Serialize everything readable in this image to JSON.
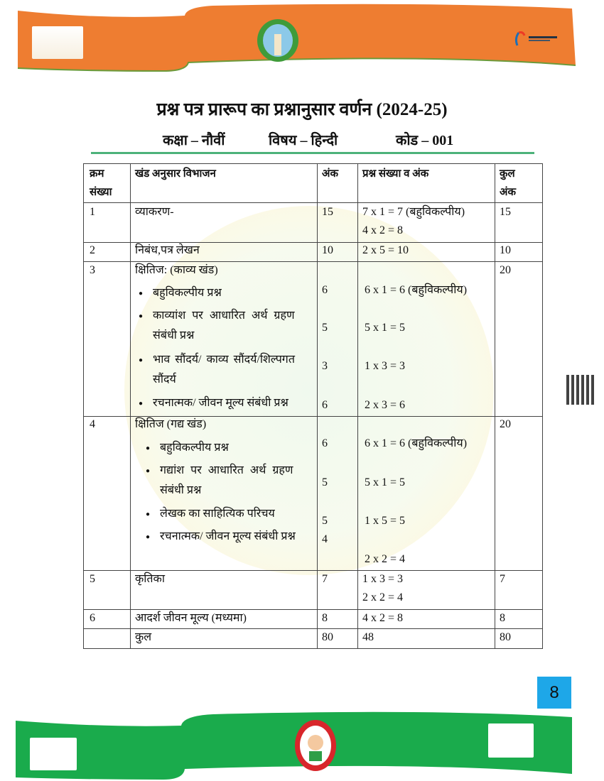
{
  "header": {
    "band_color": "#ee7d31",
    "left_logo": "azadi-ka-amrit-mahotsav-logo",
    "center_logo": "school-board-emblem",
    "right_logo": "digital-india-logo"
  },
  "footer": {
    "band_color": "#1aab4c",
    "left_logo": "swachh-bharat-logo",
    "center_logo": "beti-padhao-logo",
    "right_logo": "shiksha-ka-adhikar-logo"
  },
  "page": {
    "title": "प्रश्न पत्र प्रारूप का प्रश्नानुसार वर्णन (2024-25)",
    "class_label": "कक्षा – नौवीं",
    "subject_label": "विषय – हिन्दी",
    "code_label": "कोड – 001",
    "page_number": "8"
  },
  "table": {
    "headers": [
      "क्रम",
      "संख्या",
      "खंड अनुसार विभाजन",
      "अंक",
      "प्रश्न संख्या व अंक",
      "कुल",
      "अंक"
    ],
    "rows": [
      {
        "sn": "1",
        "section": "व्याकरण-",
        "marks": "15",
        "q": [
          "7 x 1 = 7 (बहुविकल्पीय)",
          "4 x 2 = 8"
        ],
        "total": "15"
      },
      {
        "sn": "2",
        "section": "निबंध,पत्र लेखन",
        "marks": "10",
        "q": [
          "2 x 5 = 10"
        ],
        "total": "10"
      },
      {
        "sn": "3",
        "section": "क्षितिज: (काव्य खंड)",
        "items": [
          "बहुविकल्पीय प्रश्न",
          "काव्यांश पर आधारित अर्थ ग्रहण",
          "संबंधी प्रश्न",
          "भाव सौंदर्य/ काव्य सौंदर्य/शिल्पगत",
          "सौंदर्य",
          "रचनात्मक/ जीवन मूल्य संबंधी प्रश्न"
        ],
        "marks": [
          "6",
          "5",
          "3",
          "6"
        ],
        "q": [
          "6 x 1 = 6 (बहुविकल्पीय)",
          "5 x 1 = 5",
          "1 x 3 = 3",
          "2 x 3 = 6"
        ],
        "total": "20"
      },
      {
        "sn": "4",
        "section": "क्षितिज (गद्य खंड)",
        "items": [
          "बहुविकल्पीय प्रश्न",
          "गद्यांश पर आधारित अर्थ ग्रहण",
          "संबंधी प्रश्न",
          "लेखक का साहित्यिक परिचय",
          "रचनात्मक/ जीवन मूल्य संबंधी प्रश्न"
        ],
        "marks": [
          "6",
          "5",
          "5",
          "4"
        ],
        "q": [
          "6 x 1 = 6 (बहुविकल्पीय)",
          "5 x 1 = 5",
          "1 x 5 = 5",
          "2 x 2 = 4"
        ],
        "total": "20"
      },
      {
        "sn": "5",
        "section": "कृतिका",
        "marks": "7",
        "q": [
          "1 x 3 = 3",
          "2 x 2 = 4"
        ],
        "total": "7"
      },
      {
        "sn": "6",
        "section": "आदर्श जीवन मूल्य (मध्यमा)",
        "marks": "8",
        "q": [
          "4 x 2 = 8"
        ],
        "total": "8"
      },
      {
        "sn": "",
        "section": "कुल",
        "marks": "80",
        "q": [
          "48"
        ],
        "total": "80"
      }
    ]
  }
}
